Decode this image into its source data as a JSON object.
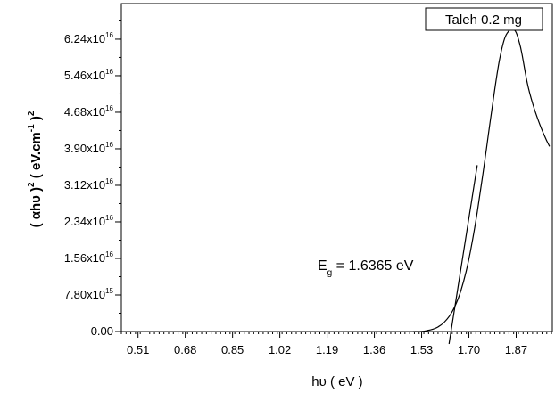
{
  "chart_data": {
    "type": "line",
    "title": "",
    "xlabel": "hυ ( eV )",
    "ylabel_parts": {
      "open": "( αhυ )",
      "open_sup": "2",
      "mid": " ( eV.cm",
      "mid_sup": "-1",
      "close": " )",
      "close_sup": "2"
    },
    "xlim": [
      0.45,
      2.0
    ],
    "ylim": [
      0,
      7e+16
    ],
    "x_ticks": [
      0.51,
      0.68,
      0.85,
      1.02,
      1.19,
      1.36,
      1.53,
      1.7,
      1.87
    ],
    "x_tick_labels": [
      "0.51",
      "0.68",
      "0.85",
      "1.02",
      "1.19",
      "1.36",
      "1.53",
      "1.70",
      "1.87"
    ],
    "y_ticks": [
      {
        "value": 0,
        "mantissa": "0.00",
        "exp": ""
      },
      {
        "value": 7800000000000000.0,
        "mantissa": "7.80x10",
        "exp": "15"
      },
      {
        "value": 1.56e+16,
        "mantissa": "1.56x10",
        "exp": "16"
      },
      {
        "value": 2.34e+16,
        "mantissa": "2.34x10",
        "exp": "16"
      },
      {
        "value": 3.12e+16,
        "mantissa": "3.12x10",
        "exp": "16"
      },
      {
        "value": 3.9e+16,
        "mantissa": "3.90x10",
        "exp": "16"
      },
      {
        "value": 4.68e+16,
        "mantissa": "4.68x10",
        "exp": "16"
      },
      {
        "value": 5.46e+16,
        "mantissa": "5.46x10",
        "exp": "16"
      },
      {
        "value": 6.24e+16,
        "mantissa": "6.24x10",
        "exp": "16"
      }
    ],
    "legend": {
      "label": "Taleh 0.2 mg",
      "placement": "top-right"
    },
    "annotation": {
      "prefix": "E",
      "sub": "g",
      "rest": " = 1.6365 eV"
    },
    "series": [
      {
        "name": "Taleh 0.2 mg",
        "x": [
          1.5,
          1.53,
          1.55,
          1.57,
          1.59,
          1.61,
          1.63,
          1.65,
          1.67,
          1.69,
          1.71,
          1.73,
          1.75,
          1.77,
          1.79,
          1.81,
          1.83,
          1.85,
          1.86,
          1.87,
          1.88,
          1.89,
          1.91,
          1.93,
          1.95,
          1.97,
          1.99
        ],
        "y": [
          0,
          30000000000000.0,
          200000000000000.0,
          500000000000000.0,
          1000000000000000.0,
          1900000000000000.0,
          3300000000000000.0,
          5400000000000000.0,
          8500000000000000.0,
          1.28e+16,
          1.85e+16,
          2.55e+16,
          3.35e+16,
          4.2e+16,
          5.05e+16,
          5.8e+16,
          6.28e+16,
          6.45e+16,
          6.45e+16,
          6.38e+16,
          6.2e+16,
          5.95e+16,
          5.3e+16,
          4.85e+16,
          4.5e+16,
          4.2e+16,
          3.95e+16
        ]
      }
    ],
    "tangent": {
      "x": [
        1.6365,
        1.73
      ],
      "y": [
        0,
        3.55e+16
      ]
    }
  }
}
